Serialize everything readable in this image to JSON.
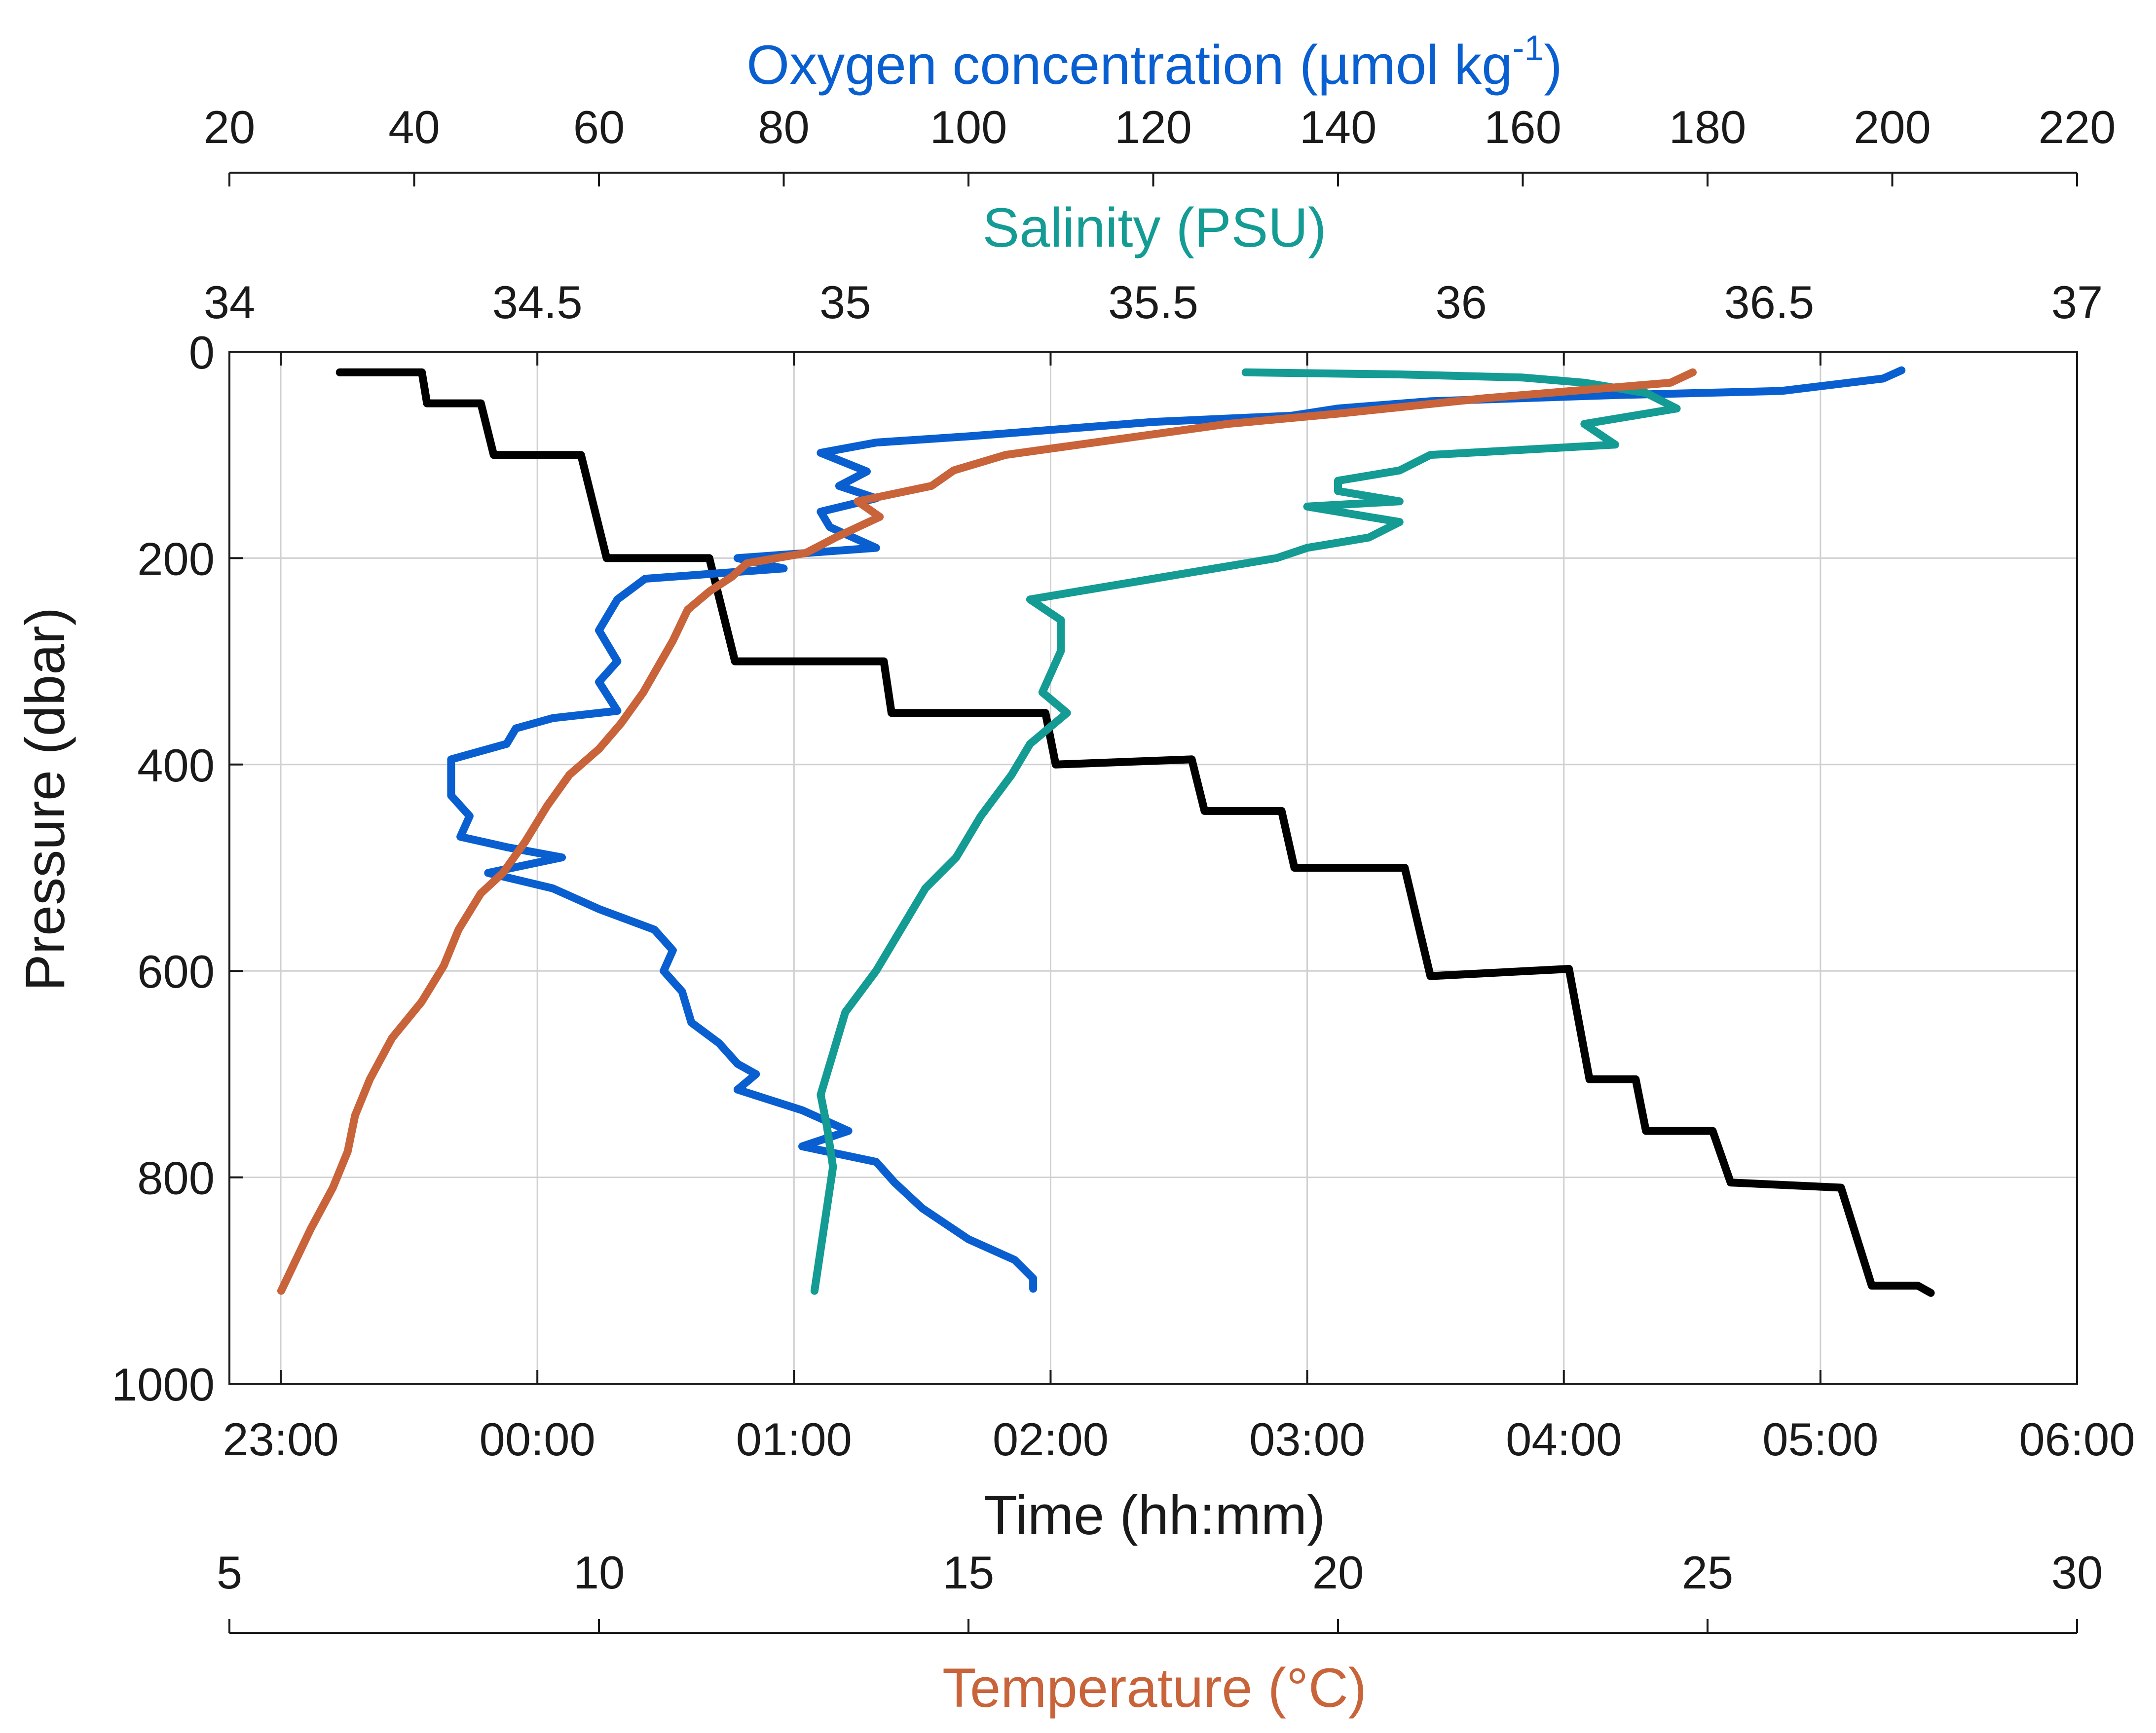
{
  "chart_data": {
    "type": "line",
    "title": "",
    "axes": {
      "oxygen": {
        "title": "Oxygen concentration (µmol kg",
        "title_superscript": "-1",
        "title_close": ")",
        "range": [
          20,
          220
        ],
        "ticks": [
          20,
          40,
          60,
          80,
          100,
          120,
          140,
          160,
          180,
          200,
          220
        ],
        "color": "#0a5fd0"
      },
      "salinity": {
        "title": "Salinity (PSU)",
        "range": [
          34,
          37
        ],
        "ticks": [
          "34",
          "34.5",
          "35",
          "35.5",
          "36",
          "36.5",
          "37"
        ],
        "color": "#139b94"
      },
      "time": {
        "title": "Time (hh:mm)",
        "range_hours": [
          22.8,
          30
        ],
        "tick_hours": [
          23,
          24,
          25,
          26,
          27,
          28,
          29,
          30
        ],
        "ticks": [
          "23:00",
          "00:00",
          "01:00",
          "02:00",
          "03:00",
          "04:00",
          "05:00",
          "06:00"
        ],
        "color": "#1a1a1a"
      },
      "temperature": {
        "title": "Temperature (°C)",
        "range": [
          5,
          30
        ],
        "ticks": [
          5,
          10,
          15,
          20,
          25,
          30
        ],
        "color": "#c8633a"
      },
      "pressure": {
        "title": "Pressure (dbar)",
        "range": [
          0,
          1000
        ],
        "ticks": [
          0,
          200,
          400,
          600,
          800,
          1000
        ],
        "reversed": true
      }
    },
    "grid": true,
    "series": [
      {
        "name": "Pressure vs time",
        "axis": "time",
        "color": "#000000",
        "points": [
          [
            23.23,
            20
          ],
          [
            23.55,
            20
          ],
          [
            23.57,
            50
          ],
          [
            23.78,
            50
          ],
          [
            23.83,
            100
          ],
          [
            24.17,
            100
          ],
          [
            24.27,
            200
          ],
          [
            24.67,
            200
          ],
          [
            24.77,
            300
          ],
          [
            25.35,
            300
          ],
          [
            25.38,
            350
          ],
          [
            25.98,
            350
          ],
          [
            26.02,
            400
          ],
          [
            26.55,
            395
          ],
          [
            26.6,
            445
          ],
          [
            26.9,
            445
          ],
          [
            26.95,
            500
          ],
          [
            27.38,
            500
          ],
          [
            27.48,
            605
          ],
          [
            28.02,
            598
          ],
          [
            28.1,
            705
          ],
          [
            28.28,
            705
          ],
          [
            28.32,
            755
          ],
          [
            28.58,
            755
          ],
          [
            28.65,
            805
          ],
          [
            29.08,
            810
          ],
          [
            29.2,
            905
          ],
          [
            29.38,
            905
          ],
          [
            29.43,
            912
          ]
        ]
      },
      {
        "name": "Oxygen concentration",
        "axis": "oxygen",
        "color": "#0a5fd0",
        "points": [
          [
            201,
            18
          ],
          [
            199,
            26
          ],
          [
            188,
            38
          ],
          [
            170,
            42
          ],
          [
            160,
            45
          ],
          [
            150,
            48
          ],
          [
            140,
            55
          ],
          [
            135,
            62
          ],
          [
            120,
            68
          ],
          [
            100,
            82
          ],
          [
            90,
            88
          ],
          [
            84,
            98
          ],
          [
            89,
            116
          ],
          [
            86,
            130
          ],
          [
            90,
            142
          ],
          [
            84,
            155
          ],
          [
            85,
            170
          ],
          [
            90,
            190
          ],
          [
            75,
            200
          ],
          [
            80,
            210
          ],
          [
            65,
            220
          ],
          [
            62,
            240
          ],
          [
            60,
            270
          ],
          [
            62,
            300
          ],
          [
            60,
            320
          ],
          [
            62,
            348
          ],
          [
            55,
            355
          ],
          [
            51,
            365
          ],
          [
            50,
            380
          ],
          [
            44,
            395
          ],
          [
            44,
            430
          ],
          [
            46,
            450
          ],
          [
            45,
            470
          ],
          [
            50,
            480
          ],
          [
            56,
            490
          ],
          [
            48,
            505
          ],
          [
            55,
            520
          ],
          [
            60,
            540
          ],
          [
            66,
            560
          ],
          [
            68,
            580
          ],
          [
            67,
            600
          ],
          [
            69,
            620
          ],
          [
            70,
            650
          ],
          [
            73,
            670
          ],
          [
            75,
            690
          ],
          [
            77,
            700
          ],
          [
            75,
            715
          ],
          [
            82,
            735
          ],
          [
            87,
            755
          ],
          [
            82,
            770
          ],
          [
            90,
            785
          ],
          [
            92,
            805
          ],
          [
            95,
            830
          ],
          [
            100,
            860
          ],
          [
            105,
            880
          ],
          [
            107,
            898
          ],
          [
            107,
            908
          ]
        ]
      },
      {
        "name": "Salinity",
        "axis": "salinity",
        "color": "#139b94",
        "points": [
          [
            35.65,
            20
          ],
          [
            35.9,
            22
          ],
          [
            36.1,
            25
          ],
          [
            36.2,
            30
          ],
          [
            36.3,
            40
          ],
          [
            36.35,
            55
          ],
          [
            36.2,
            70
          ],
          [
            36.25,
            90
          ],
          [
            36.1,
            95
          ],
          [
            35.95,
            100
          ],
          [
            35.9,
            115
          ],
          [
            35.8,
            125
          ],
          [
            35.8,
            135
          ],
          [
            35.9,
            145
          ],
          [
            35.75,
            150
          ],
          [
            35.9,
            165
          ],
          [
            35.85,
            180
          ],
          [
            35.75,
            190
          ],
          [
            35.7,
            200
          ],
          [
            35.6,
            210
          ],
          [
            35.5,
            220
          ],
          [
            35.3,
            240
          ],
          [
            35.35,
            260
          ],
          [
            35.35,
            290
          ],
          [
            35.32,
            330
          ],
          [
            35.36,
            350
          ],
          [
            35.3,
            380
          ],
          [
            35.27,
            410
          ],
          [
            35.22,
            450
          ],
          [
            35.18,
            490
          ],
          [
            35.13,
            520
          ],
          [
            35.1,
            550
          ],
          [
            35.07,
            580
          ],
          [
            35.05,
            600
          ],
          [
            35.0,
            640
          ],
          [
            34.98,
            680
          ],
          [
            34.96,
            720
          ],
          [
            34.97,
            750
          ],
          [
            34.98,
            790
          ],
          [
            34.97,
            830
          ],
          [
            34.96,
            870
          ],
          [
            34.95,
            910
          ]
        ]
      },
      {
        "name": "Temperature",
        "axis": "temperature",
        "color": "#c8633a",
        "points": [
          [
            24.8,
            20
          ],
          [
            24.5,
            30
          ],
          [
            22,
            45
          ],
          [
            20,
            60
          ],
          [
            18.5,
            70
          ],
          [
            17,
            85
          ],
          [
            15.5,
            100
          ],
          [
            14.8,
            115
          ],
          [
            14.5,
            130
          ],
          [
            13.5,
            145
          ],
          [
            13.8,
            160
          ],
          [
            13.2,
            180
          ],
          [
            12.8,
            195
          ],
          [
            12.0,
            205
          ],
          [
            11.8,
            218
          ],
          [
            11.5,
            232
          ],
          [
            11.2,
            250
          ],
          [
            11.0,
            280
          ],
          [
            10.8,
            305
          ],
          [
            10.6,
            330
          ],
          [
            10.3,
            360
          ],
          [
            10.0,
            385
          ],
          [
            9.6,
            410
          ],
          [
            9.3,
            440
          ],
          [
            9.0,
            475
          ],
          [
            8.7,
            505
          ],
          [
            8.4,
            525
          ],
          [
            8.1,
            560
          ],
          [
            7.9,
            595
          ],
          [
            7.6,
            630
          ],
          [
            7.2,
            665
          ],
          [
            6.9,
            705
          ],
          [
            6.7,
            740
          ],
          [
            6.6,
            775
          ],
          [
            6.4,
            810
          ],
          [
            6.1,
            850
          ],
          [
            5.9,
            880
          ],
          [
            5.7,
            910
          ]
        ]
      }
    ]
  }
}
